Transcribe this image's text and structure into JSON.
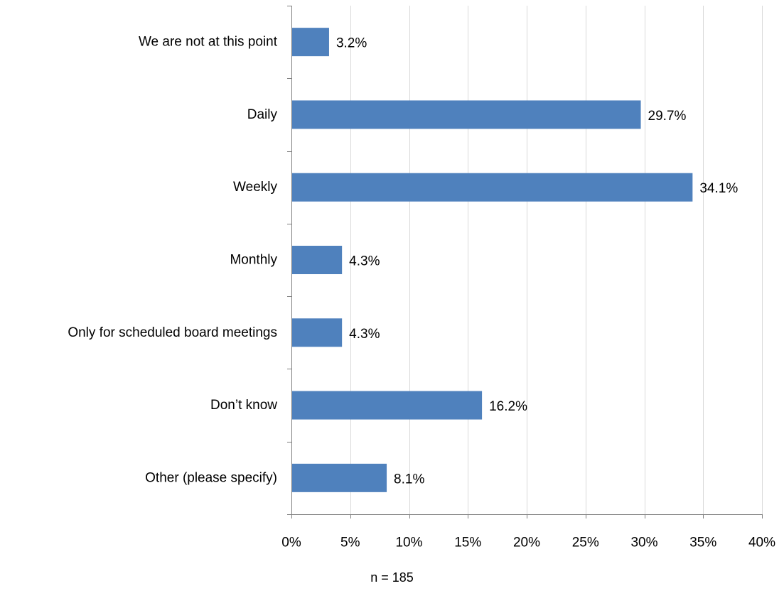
{
  "chart_data": {
    "type": "bar",
    "orientation": "horizontal",
    "categories": [
      "We are not at this point",
      "Daily",
      "Weekly",
      "Monthly",
      "Only for scheduled board meetings",
      "Don’t know",
      "Other (please specify)"
    ],
    "values": [
      3.2,
      29.7,
      34.1,
      4.3,
      4.3,
      16.2,
      8.1
    ],
    "data_labels": [
      "3.2%",
      "29.7%",
      "34.1%",
      "4.3%",
      "4.3%",
      "16.2%",
      "8.1%"
    ],
    "value_unit": "%",
    "xlim": [
      0,
      40
    ],
    "x_ticks": [
      0,
      5,
      10,
      15,
      20,
      25,
      30,
      35,
      40
    ],
    "x_tick_labels": [
      "0%",
      "5%",
      "10%",
      "15%",
      "20%",
      "25%",
      "30%",
      "35%",
      "40%"
    ],
    "grid": "vertical",
    "legend": "none",
    "bar_color": "#4f81bd",
    "grid_color": "#d9d9d9",
    "axis_color": "#808080",
    "title": "",
    "xlabel": "",
    "ylabel": ""
  },
  "note": "n = 185"
}
